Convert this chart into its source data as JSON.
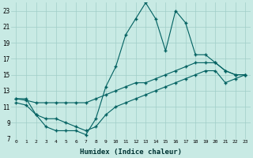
{
  "xlabel": "Humidex (Indice chaleur)",
  "ylabel": "",
  "bg_color": "#c8eae4",
  "grid_color": "#a0cec8",
  "line_color": "#006060",
  "xlim": [
    -0.5,
    23.5
  ],
  "ylim": [
    7,
    24
  ],
  "yticks": [
    7,
    9,
    11,
    13,
    15,
    17,
    19,
    21,
    23
  ],
  "xticks": [
    0,
    1,
    2,
    3,
    4,
    5,
    6,
    7,
    8,
    9,
    10,
    11,
    12,
    13,
    14,
    15,
    16,
    17,
    18,
    19,
    20,
    21,
    22,
    23
  ],
  "line1_x": [
    0,
    1,
    2,
    3,
    4,
    5,
    6,
    7,
    8,
    9,
    10,
    11,
    12,
    13,
    14,
    15,
    16,
    17,
    18,
    19,
    20,
    21,
    22,
    23
  ],
  "line1_y": [
    12,
    12,
    10,
    8.5,
    8,
    8,
    8,
    7.5,
    9.5,
    13.5,
    16,
    20,
    22,
    24,
    22,
    18,
    23,
    21.5,
    17.5,
    17.5,
    16.5,
    15.5,
    15,
    15
  ],
  "line2_x": [
    0,
    1,
    2,
    3,
    4,
    5,
    6,
    7,
    8,
    9,
    10,
    11,
    12,
    13,
    14,
    15,
    16,
    17,
    18,
    19,
    20,
    21,
    22,
    23
  ],
  "line2_y": [
    12,
    11.8,
    11.5,
    11.5,
    11.5,
    11.5,
    11.5,
    11.5,
    12,
    12.5,
    13,
    13.5,
    14,
    14,
    14.5,
    15,
    15.5,
    16,
    16.5,
    16.5,
    16.5,
    15.5,
    15,
    15
  ],
  "line3_x": [
    0,
    1,
    2,
    3,
    4,
    5,
    6,
    7,
    8,
    9,
    10,
    11,
    12,
    13,
    14,
    15,
    16,
    17,
    18,
    19,
    20,
    21,
    22,
    23
  ],
  "line3_y": [
    11.5,
    11.2,
    10,
    9.5,
    9.5,
    9,
    8.5,
    8,
    8.5,
    10,
    11,
    11.5,
    12,
    12.5,
    13,
    13.5,
    14,
    14.5,
    15,
    15.5,
    15.5,
    14,
    14.5,
    15
  ]
}
